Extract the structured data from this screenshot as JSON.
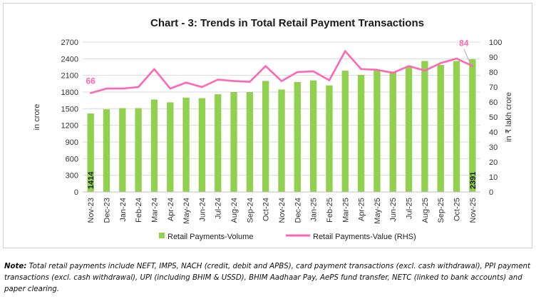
{
  "chart_data": {
    "type": "bar",
    "title": "Chart - 3: Trends in Total Retail Payment Transactions",
    "categories": [
      "Nov-23",
      "Dec-23",
      "Jan-24",
      "Feb-24",
      "Mar-24",
      "Apr-24",
      "May-24",
      "Jun-24",
      "Jul-24",
      "Aug-24",
      "Sep-24",
      "Oct-24",
      "Nov-24",
      "Dec-24",
      "Jan-25",
      "Feb-25",
      "Mar-25",
      "Apr-25",
      "May-25",
      "Jun-25",
      "Jul-25",
      "Aug-25",
      "Sep-25",
      "Oct-25",
      "Nov-25"
    ],
    "ylabel": "in crore",
    "y2label": "in ₹ lakh crore",
    "ylim": [
      0,
      2700
    ],
    "y2lim": [
      0,
      100
    ],
    "yticks": [
      0,
      300,
      600,
      900,
      1200,
      1500,
      1800,
      2100,
      2400,
      2700
    ],
    "y2ticks": [
      0,
      10,
      20,
      30,
      40,
      50,
      60,
      70,
      80,
      90,
      100
    ],
    "grid": true,
    "legend_position": "bottom",
    "series": [
      {
        "name": "Retail Payments-Volume",
        "type": "bar",
        "axis": "left",
        "color": "#92d050",
        "values": [
          1414,
          1490,
          1510,
          1510,
          1665,
          1615,
          1700,
          1690,
          1760,
          1800,
          1800,
          2000,
          1845,
          1980,
          2010,
          1920,
          2185,
          2110,
          2200,
          2170,
          2260,
          2360,
          2290,
          2360,
          2391
        ]
      },
      {
        "name": "Retail Payments-Value (RHS)",
        "type": "line",
        "axis": "right",
        "color": "#ff66b3",
        "values": [
          66,
          69,
          69,
          70,
          82,
          69,
          73,
          70,
          75,
          74,
          73.5,
          84,
          74,
          80,
          80.5,
          74.5,
          94,
          82,
          81.5,
          79.5,
          84,
          81,
          86,
          89,
          84
        ]
      }
    ],
    "data_labels": {
      "volume_first": "1414",
      "volume_last": "2391",
      "value_first": "66",
      "value_last": "84"
    }
  },
  "note": {
    "label": "Note:",
    "text": "Total retail payments include NEFT, IMPS, NACH (credit, debit and APBS), card payment transactions (excl. cash withdrawal), PPI payment transactions (excl. cash withdrawal), UPI (including BHIM & USSD), BHIM Aadhaar Pay, AePS fund transfer, NETC (linked to bank accounts) and paper clearing."
  }
}
